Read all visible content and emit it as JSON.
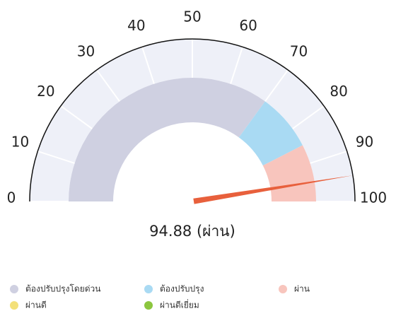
{
  "chart_data": {
    "type": "gauge",
    "value": 94.88,
    "value_label": "94.88 (ผ่าน)",
    "needle_color": "#e8603c",
    "ylim": [
      0,
      100
    ],
    "yticks": [
      0,
      10,
      20,
      30,
      40,
      50,
      60,
      70,
      80,
      90,
      100
    ],
    "series": [
      {
        "name": "ต้องปรับปรุงโดยด่วน",
        "color": "#cfd0e1",
        "range": [
          0,
          70
        ]
      },
      {
        "name": "ต้องปรับปรุง",
        "color": "#a9daf3",
        "range": [
          70,
          85
        ]
      },
      {
        "name": "ผ่าน",
        "color": "#f8c5bd",
        "range": [
          85,
          100
        ]
      },
      {
        "name": "ผ่านดี",
        "color": "#f3e07a"
      },
      {
        "name": "ผ่านดีเยี่ยม",
        "color": "#8cc63f"
      }
    ]
  }
}
